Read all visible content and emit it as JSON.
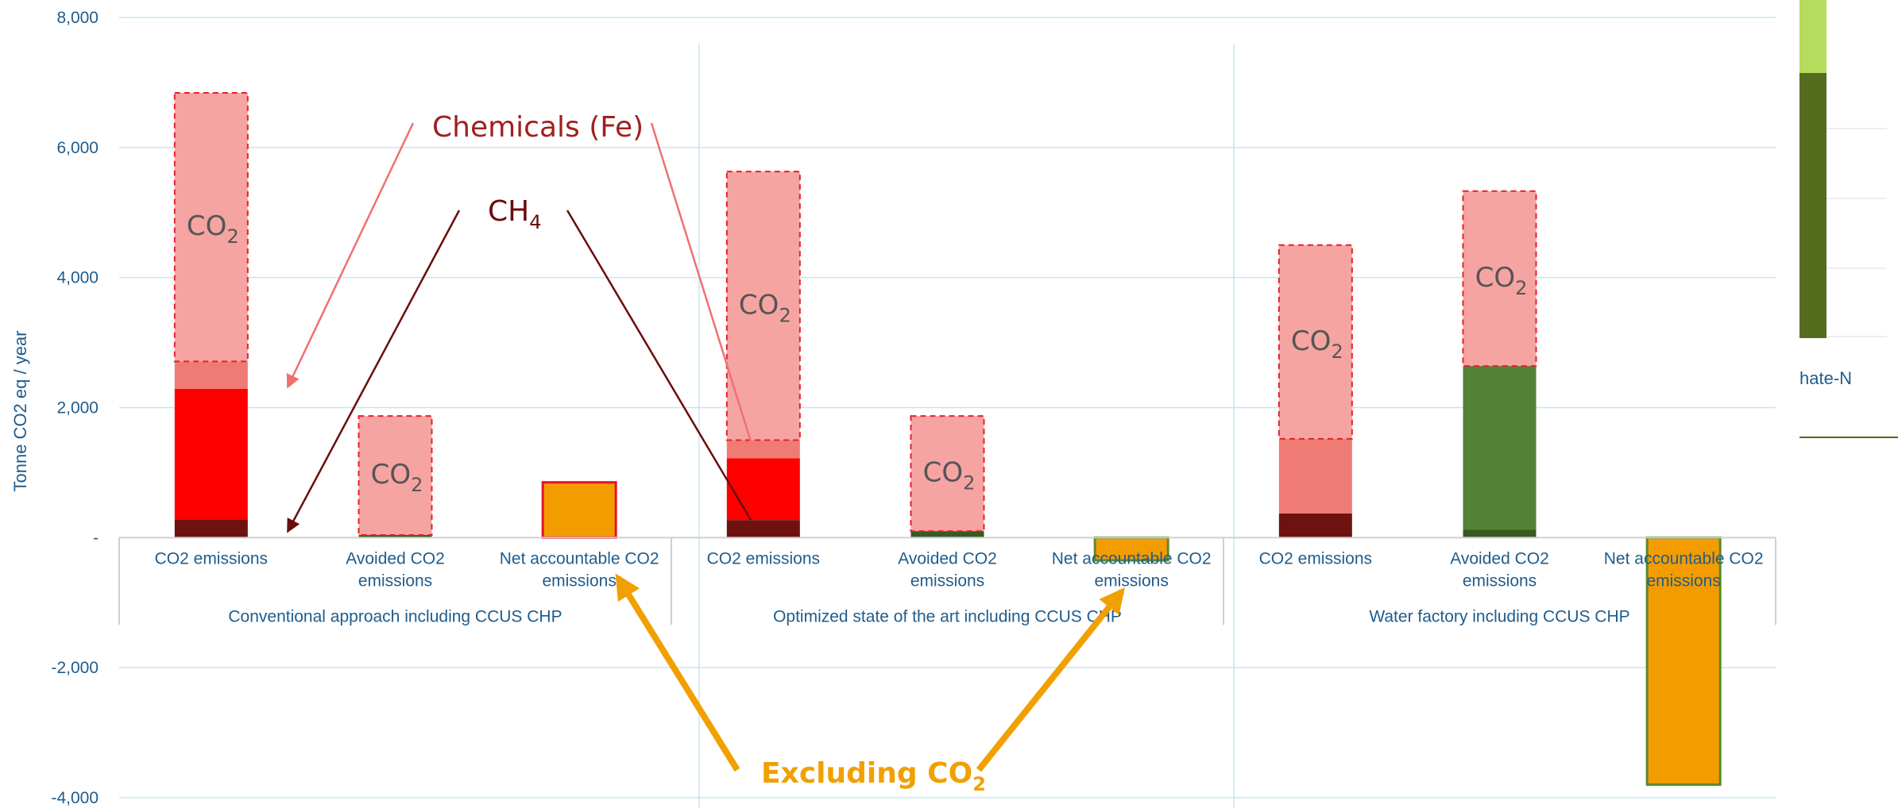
{
  "chart_data": {
    "type": "bar",
    "stacked": true,
    "ylabel": "Tonne CO2 eq / year",
    "ylim": [
      -4000,
      8000
    ],
    "yticks": [
      8000,
      6000,
      4000,
      2000,
      0,
      -2000,
      -4000
    ],
    "ytick_labels": [
      "8,000",
      "6,000",
      "4,000",
      "2,000",
      "-",
      "-2,000",
      "-4,000"
    ],
    "grid": true,
    "groups": [
      {
        "label": "Conventional approach including CCUS CHP",
        "categories": [
          "CO2 emissions",
          "Avoided CO2 emissions",
          "Net accountable CO2 emissions"
        ],
        "bars": [
          {
            "segments": [
              {
                "role": "ch4",
                "value": 280,
                "color": "#6e1210"
              },
              {
                "role": "process",
                "value": 2010,
                "color": "#ff0000"
              },
              {
                "role": "chemicals",
                "value": 420,
                "color": "#f07a74"
              },
              {
                "role": "co2",
                "value": 4130,
                "color": "#f5a4a2",
                "dashed": true,
                "label": "CO2"
              }
            ]
          },
          {
            "segments": [
              {
                "role": "avoided-dark",
                "value": 40,
                "color": "#375a22"
              },
              {
                "role": "co2",
                "value": 1830,
                "color": "#f5a4a2",
                "dashed": true,
                "label": "CO2"
              }
            ]
          },
          {
            "segments": [
              {
                "role": "net",
                "value": 850,
                "color": "#f39c00",
                "border": "#e8102a"
              }
            ]
          }
        ]
      },
      {
        "label": "Optimized state of the art including CCUS CHP",
        "categories": [
          "CO2 emissions",
          "Avoided CO2 emissions",
          "Net accountable CO2 emissions"
        ],
        "bars": [
          {
            "segments": [
              {
                "role": "ch4",
                "value": 270,
                "color": "#6e1210"
              },
              {
                "role": "process",
                "value": 950,
                "color": "#ff0000"
              },
              {
                "role": "chemicals",
                "value": 280,
                "color": "#f07a74"
              },
              {
                "role": "co2",
                "value": 4130,
                "color": "#f5a4a2",
                "dashed": true,
                "label": "CO2"
              }
            ]
          },
          {
            "segments": [
              {
                "role": "avoided-dark",
                "value": 100,
                "color": "#375a22"
              },
              {
                "role": "co2",
                "value": 1770,
                "color": "#f5a4a2",
                "dashed": true,
                "label": "CO2"
              }
            ]
          },
          {
            "segments": [
              {
                "role": "net",
                "value": -350,
                "color": "#f39c00",
                "border": "#5a8a2a"
              }
            ]
          }
        ]
      },
      {
        "label": "Water factory including CCUS CHP",
        "categories": [
          "CO2 emissions",
          "Avoided CO2 emissions",
          "Net accountable CO2 emissions"
        ],
        "bars": [
          {
            "segments": [
              {
                "role": "ch4",
                "value": 370,
                "color": "#6e1210"
              },
              {
                "role": "chemicals",
                "value": 1150,
                "color": "#f07a74"
              },
              {
                "role": "co2",
                "value": 2980,
                "color": "#f5a4a2",
                "dashed": true,
                "label": "CO2"
              }
            ]
          },
          {
            "segments": [
              {
                "role": "avoided-dark",
                "value": 120,
                "color": "#375a22"
              },
              {
                "role": "avoided",
                "value": 2520,
                "color": "#538135"
              },
              {
                "role": "co2",
                "value": 2690,
                "color": "#f5a4a2",
                "dashed": true,
                "label": "CO2"
              }
            ]
          },
          {
            "segments": [
              {
                "role": "net",
                "value": -3800,
                "color": "#f39c00",
                "border": "#5a8a2a"
              }
            ]
          }
        ]
      }
    ],
    "annotations": {
      "chemicals": "Chemicals (Fe)",
      "ch4_base": "CH",
      "ch4_sub": "4",
      "excluding_base": "Excluding CO",
      "excluding_sub": "2",
      "co2_base": "CO",
      "co2_sub": "2"
    },
    "legend": {
      "visible_text": "hate-N",
      "colors": [
        "#b5dc5c",
        "#556b1e"
      ]
    }
  }
}
